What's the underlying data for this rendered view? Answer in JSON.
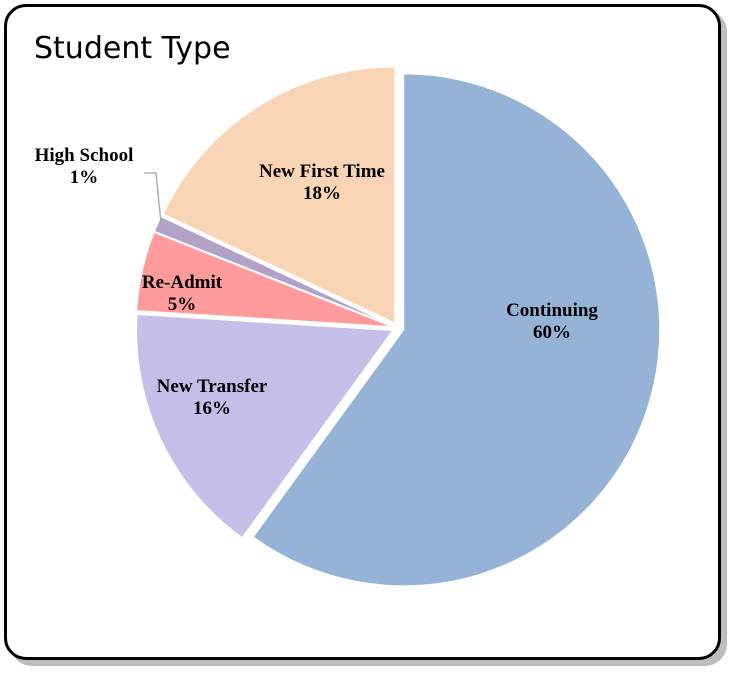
{
  "chart_data": {
    "type": "pie",
    "title": "Student Type",
    "slices": [
      {
        "label": "Continuing",
        "value": 60,
        "pct_label": "60%",
        "color": "#95B3D7"
      },
      {
        "label": "New Transfer",
        "value": 16,
        "pct_label": "16%",
        "color": "#C5BEE8"
      },
      {
        "label": "Re-Admit",
        "value": 5,
        "pct_label": "5%",
        "color": "#FF9B9B"
      },
      {
        "label": "High School",
        "value": 1,
        "pct_label": "1%",
        "color": "#B3A2C7"
      },
      {
        "label": "New First Time",
        "value": 18,
        "pct_label": "18%",
        "color": "#FAD5B5"
      }
    ],
    "legend": "none",
    "start_angle_deg": 0,
    "direction": "clockwise"
  }
}
